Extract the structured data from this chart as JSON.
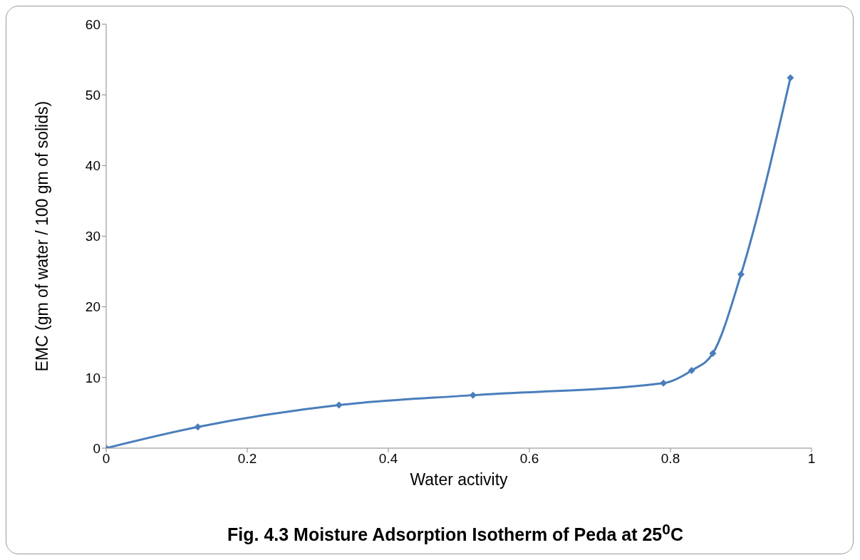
{
  "chart_data": {
    "type": "line",
    "title": "Fig. 4.3 Moisture Adsorption Isotherm of Peda at 25$^{0}$C",
    "xlabel": "Water activity",
    "ylabel": "EMC (gm of water / 100 gm of solids)",
    "x": [
      0,
      0.13,
      0.33,
      0.52,
      0.79,
      0.83,
      0.86,
      0.9,
      0.97
    ],
    "series": [
      {
        "color": "#4a7ebb",
        "values": [
          0,
          3.0,
          6.1,
          7.5,
          9.2,
          11.0,
          13.4,
          24.6,
          52.4
        ]
      }
    ],
    "xlim": [
      0,
      1
    ],
    "xticks": [
      0,
      0.2,
      0.4,
      0.6,
      0.8,
      1
    ],
    "ylim": [
      0,
      60
    ],
    "yticks": [
      0,
      10,
      20,
      30,
      40,
      50,
      60
    ],
    "grid": false,
    "legend": false,
    "marker": "diamond",
    "line_style": "solid"
  }
}
